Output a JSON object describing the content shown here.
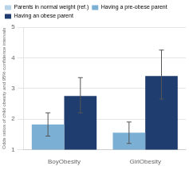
{
  "chart_data": {
    "type": "bar",
    "categories": [
      "BoyObesity",
      "GirlObesity"
    ],
    "series": [
      {
        "name": "Parents in normal weight (ref.)",
        "color": "#b8d4e8"
      },
      {
        "name": "Having a pre-obese parent",
        "color": "#7bafd4",
        "values": [
          1.82,
          1.55
        ],
        "error_plus": [
          0.38,
          0.35
        ],
        "error_minus": [
          0.38,
          0.35
        ]
      },
      {
        "name": "Having an obese parent",
        "color": "#1f3d6e",
        "values": [
          2.75,
          3.4
        ],
        "error_plus": [
          0.6,
          0.85
        ],
        "error_minus": [
          0.55,
          0.75
        ]
      }
    ],
    "ylabel": "Odds ratios of child obesity and 95% confidence intervals",
    "ylim": [
      1,
      5
    ],
    "yticks": [
      1,
      2,
      3,
      4,
      5
    ],
    "grid": true,
    "legend": "upper left"
  }
}
